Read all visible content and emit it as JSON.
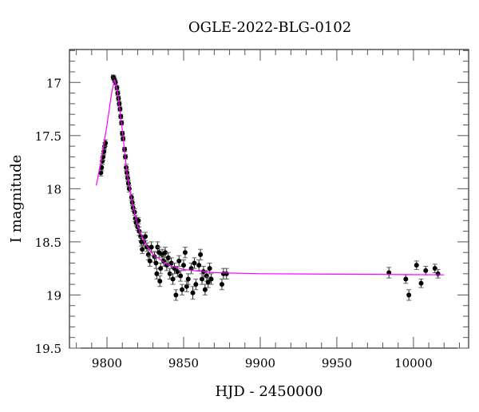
{
  "chart_data": {
    "type": "scatter",
    "title": "OGLE-2022-BLG-0102",
    "xlabel": "HJD - 2450000",
    "ylabel": "I magnitude",
    "xlim": [
      9775.5,
      10036
    ],
    "ylim": [
      19.5,
      16.69
    ],
    "y_inverted": true,
    "xticks": [
      9800,
      9850,
      9900,
      9950,
      10000
    ],
    "xtick_labels": [
      "9800",
      "9850",
      "9900",
      "9950",
      "10000"
    ],
    "yticks": [
      17,
      17.5,
      18,
      18.5,
      19,
      19.5
    ],
    "ytick_labels": [
      "17",
      "17.5",
      "18",
      "18.5",
      "19",
      "19.5"
    ],
    "grid": false,
    "colors": {
      "data": "#000000",
      "model": "#ff00ff"
    },
    "series": [
      {
        "name": "data",
        "points": [
          [
            9796,
            17.85,
            0.03
          ],
          [
            9796.5,
            17.8,
            0.03
          ],
          [
            9797,
            17.74,
            0.03
          ],
          [
            9797.5,
            17.7,
            0.03
          ],
          [
            9798,
            17.65,
            0.03
          ],
          [
            9798.5,
            17.6,
            0.03
          ],
          [
            9799,
            17.57,
            0.03
          ],
          [
            9804,
            16.95,
            0.02
          ],
          [
            9804.5,
            16.96,
            0.02
          ],
          [
            9805,
            16.98,
            0.02
          ],
          [
            9805.5,
            17.0,
            0.02
          ],
          [
            9806.5,
            17.05,
            0.02
          ],
          [
            9807,
            17.1,
            0.02
          ],
          [
            9807.5,
            17.15,
            0.02
          ],
          [
            9808,
            17.2,
            0.02
          ],
          [
            9808.5,
            17.25,
            0.02
          ],
          [
            9809,
            17.32,
            0.02
          ],
          [
            9809.5,
            17.38,
            0.02
          ],
          [
            9810,
            17.48,
            0.02
          ],
          [
            9810.5,
            17.53,
            0.02
          ],
          [
            9811.5,
            17.63,
            0.02
          ],
          [
            9812,
            17.7,
            0.02
          ],
          [
            9812.5,
            17.8,
            0.03
          ],
          [
            9813,
            17.85,
            0.03
          ],
          [
            9813.5,
            17.9,
            0.03
          ],
          [
            9814,
            17.95,
            0.03
          ],
          [
            9814.5,
            18.0,
            0.03
          ],
          [
            9816,
            18.08,
            0.03
          ],
          [
            9816.5,
            18.13,
            0.03
          ],
          [
            9817,
            18.18,
            0.03
          ],
          [
            9818,
            18.22,
            0.03
          ],
          [
            9818.5,
            18.28,
            0.03
          ],
          [
            9819,
            18.32,
            0.03
          ],
          [
            9820,
            18.36,
            0.03
          ],
          [
            9820.5,
            18.3,
            0.03
          ],
          [
            9821,
            18.4,
            0.04
          ],
          [
            9822,
            18.45,
            0.04
          ],
          [
            9822.5,
            18.5,
            0.04
          ],
          [
            9823,
            18.57,
            0.04
          ],
          [
            9824,
            18.5,
            0.04
          ],
          [
            9825,
            18.45,
            0.04
          ],
          [
            9826,
            18.55,
            0.04
          ],
          [
            9827,
            18.62,
            0.05
          ],
          [
            9828,
            18.68,
            0.05
          ],
          [
            9829,
            18.55,
            0.05
          ],
          [
            9831,
            18.64,
            0.05
          ],
          [
            9832,
            18.7,
            0.05
          ],
          [
            9832.5,
            18.8,
            0.05
          ],
          [
            9833,
            18.55,
            0.05
          ],
          [
            9834,
            18.6,
            0.05
          ],
          [
            9834.5,
            18.87,
            0.05
          ],
          [
            9835,
            18.75,
            0.05
          ],
          [
            9836,
            18.62,
            0.05
          ],
          [
            9837,
            18.68,
            0.05
          ],
          [
            9838,
            18.6,
            0.05
          ],
          [
            9839,
            18.72,
            0.05
          ],
          [
            9840,
            18.65,
            0.05
          ],
          [
            9841,
            18.8,
            0.05
          ],
          [
            9842,
            18.7,
            0.05
          ],
          [
            9843,
            18.85,
            0.05
          ],
          [
            9844,
            18.75,
            0.05
          ],
          [
            9845,
            19.0,
            0.05
          ],
          [
            9846,
            18.78,
            0.05
          ],
          [
            9847,
            18.68,
            0.05
          ],
          [
            9848,
            18.82,
            0.05
          ],
          [
            9849,
            18.95,
            0.05
          ],
          [
            9850,
            18.72,
            0.05
          ],
          [
            9851,
            18.6,
            0.05
          ],
          [
            9852,
            18.92,
            0.05
          ],
          [
            9853,
            18.85,
            0.05
          ],
          [
            9855,
            18.75,
            0.05
          ],
          [
            9856,
            18.98,
            0.06
          ],
          [
            9857,
            18.7,
            0.05
          ],
          [
            9858,
            18.9,
            0.05
          ],
          [
            9860,
            18.72,
            0.05
          ],
          [
            9861,
            18.62,
            0.05
          ],
          [
            9862,
            18.85,
            0.05
          ],
          [
            9863,
            18.78,
            0.05
          ],
          [
            9864,
            18.95,
            0.05
          ],
          [
            9865,
            18.82,
            0.05
          ],
          [
            9866,
            18.88,
            0.05
          ],
          [
            9867,
            18.75,
            0.05
          ],
          [
            9868,
            18.85,
            0.05
          ],
          [
            9875,
            18.9,
            0.05
          ],
          [
            9876,
            18.8,
            0.05
          ],
          [
            9878,
            18.8,
            0.05
          ],
          [
            9984,
            18.79,
            0.05
          ],
          [
            9995,
            18.85,
            0.04
          ],
          [
            9997,
            19.0,
            0.05
          ],
          [
            10002,
            18.72,
            0.04
          ],
          [
            10005,
            18.89,
            0.04
          ],
          [
            10008,
            18.77,
            0.04
          ],
          [
            10014,
            18.75,
            0.04
          ],
          [
            10016,
            18.8,
            0.04
          ]
        ]
      },
      {
        "name": "model",
        "points": [
          [
            9793,
            17.97
          ],
          [
            9796,
            17.75
          ],
          [
            9800,
            17.4
          ],
          [
            9803,
            17.1
          ],
          [
            9805,
            16.97
          ],
          [
            9807,
            17.1
          ],
          [
            9810,
            17.45
          ],
          [
            9813,
            17.85
          ],
          [
            9816,
            18.1
          ],
          [
            9820,
            18.35
          ],
          [
            9825,
            18.52
          ],
          [
            9830,
            18.62
          ],
          [
            9840,
            18.72
          ],
          [
            9850,
            18.76
          ],
          [
            9870,
            18.79
          ],
          [
            9900,
            18.8
          ],
          [
            10020,
            18.81
          ]
        ]
      }
    ]
  }
}
